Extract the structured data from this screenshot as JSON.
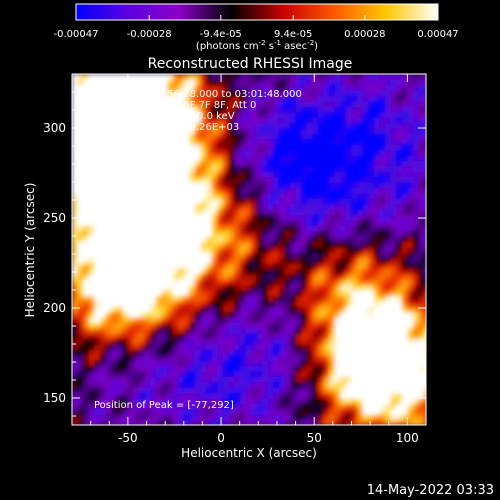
{
  "chart_data": {
    "type": "heatmap",
    "title": "Reconstructed RHESSI Image",
    "xlabel": "Heliocentric X (arcsec)",
    "ylabel": "Heliocentric Y (arcsec)",
    "xlim": [
      -80,
      110
    ],
    "ylim": [
      135,
      330
    ],
    "x_ticks": [
      -50,
      0,
      50,
      100
    ],
    "y_ticks": [
      150,
      200,
      250,
      300
    ],
    "colorbar": {
      "range": [
        -0.00047,
        0.00047
      ],
      "tick_values": [
        -0.00047,
        -0.00028,
        -9.4e-05,
        9.4e-05,
        0.00028,
        0.00047
      ],
      "tick_labels": [
        "-0.00047",
        "-0.00028",
        "-9.4e-05",
        "9.4e-05",
        "0.00028",
        "0.00047"
      ],
      "unit_label": "(photons cm-2 s-1 asec-2)",
      "colors": [
        "#0000ff",
        "#5a00e0",
        "#8a00c8",
        "#000000",
        "#c80000",
        "#ff5a00",
        "#ffc800",
        "#ffffff"
      ]
    },
    "annotations": {
      "time_range": "20-May-2013 02:56:28.000 to 03:01:48.000",
      "detectors": "Detectors: 3F 4F 5F 6F 7F 8F, Att 0",
      "energy": "Energy Range: 25.0 - 50.0 keV",
      "clean": "Clean    Total counts: 9.26E+03",
      "peak": "Position of Peak = [-77,292]"
    },
    "timestamp": "14-May-2022 03:33",
    "peak_position": [
      -77,
      292
    ],
    "intensity_regions": [
      {
        "x": -77,
        "y": 300,
        "value": 0.00047
      },
      {
        "x": -60,
        "y": 305,
        "value": 0.00042
      },
      {
        "x": -35,
        "y": 318,
        "value": 0.00032
      },
      {
        "x": -55,
        "y": 275,
        "value": 0.00036
      },
      {
        "x": -25,
        "y": 285,
        "value": 0.00025
      },
      {
        "x": -20,
        "y": 250,
        "value": 0.00022
      },
      {
        "x": -55,
        "y": 240,
        "value": 0.0003
      },
      {
        "x": -40,
        "y": 215,
        "value": 0.00034
      },
      {
        "x": -62,
        "y": 205,
        "value": 0.00026
      },
      {
        "x": 5,
        "y": 232,
        "value": 0.00012
      },
      {
        "x": 70,
        "y": 210,
        "value": 0.00024
      },
      {
        "x": 90,
        "y": 180,
        "value": 0.0003
      },
      {
        "x": 75,
        "y": 170,
        "value": 0.00036
      },
      {
        "x": 95,
        "y": 150,
        "value": 0.00022
      },
      {
        "x": 40,
        "y": 290,
        "value": -0.0004
      },
      {
        "x": 55,
        "y": 265,
        "value": -0.00032
      },
      {
        "x": 80,
        "y": 305,
        "value": -0.0003
      },
      {
        "x": 20,
        "y": 180,
        "value": -0.00024
      },
      {
        "x": -10,
        "y": 160,
        "value": -0.00026
      },
      {
        "x": -50,
        "y": 170,
        "value": -0.0002
      },
      {
        "x": 50,
        "y": 175,
        "value": -0.00018
      },
      {
        "x": 20,
        "y": 150,
        "value": -0.00015
      },
      {
        "x": 100,
        "y": 270,
        "value": -0.00022
      }
    ]
  }
}
